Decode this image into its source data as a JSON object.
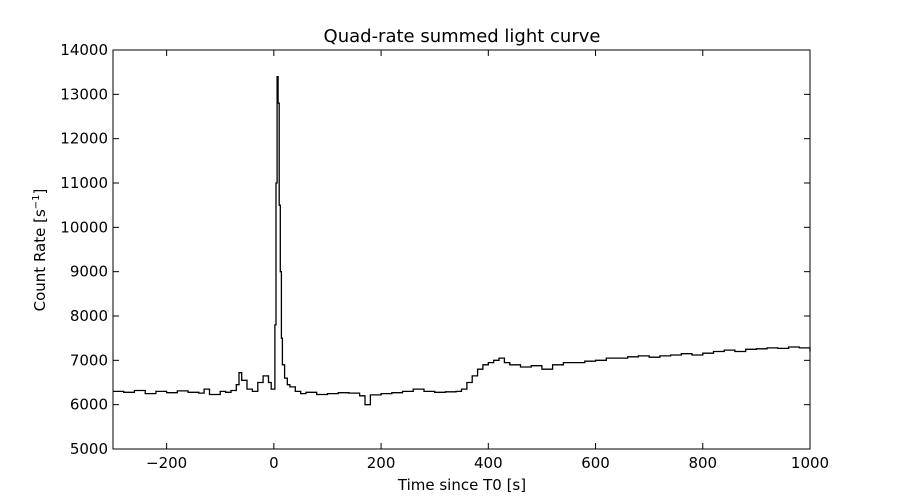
{
  "chart_data": {
    "type": "line",
    "title": "Quad-rate summed light curve",
    "xlabel": "Time since T0 [s]",
    "ylabel_main": "Count Rate [s",
    "ylabel_sup": "−1",
    "ylabel_end": "]",
    "xlim": [
      -300,
      1000
    ],
    "ylim": [
      5000,
      14000
    ],
    "x_ticks": [
      -200,
      0,
      200,
      400,
      600,
      800,
      1000
    ],
    "x_tick_labels": [
      "−200",
      "0",
      "200",
      "400",
      "600",
      "800",
      "1000"
    ],
    "y_ticks": [
      5000,
      6000,
      7000,
      8000,
      9000,
      10000,
      11000,
      12000,
      13000,
      14000
    ],
    "y_tick_labels": [
      "5000",
      "6000",
      "7000",
      "8000",
      "9000",
      "10000",
      "11000",
      "12000",
      "13000",
      "14000"
    ],
    "grid": false,
    "line_color": "#000000",
    "series": [
      {
        "x": [
          -300,
          -280,
          -260,
          -240,
          -220,
          -200,
          -180,
          -160,
          -140,
          -130,
          -120,
          -100,
          -90,
          -80,
          -70,
          -65,
          -60,
          -50,
          -40,
          -30,
          -20,
          -10,
          -5,
          0,
          2,
          4,
          6,
          8,
          10,
          12,
          14,
          16,
          20,
          25,
          30,
          40,
          50,
          60,
          80,
          100,
          120,
          140,
          160,
          170,
          180,
          200,
          220,
          240,
          260,
          280,
          300,
          320,
          340,
          350,
          360,
          370,
          380,
          390,
          400,
          410,
          420,
          430,
          440,
          460,
          480,
          500,
          520,
          540,
          560,
          580,
          600,
          620,
          640,
          660,
          680,
          700,
          720,
          740,
          760,
          780,
          800,
          820,
          840,
          860,
          880,
          900,
          920,
          940,
          960,
          980,
          1000
        ],
        "y": [
          6300,
          6280,
          6320,
          6250,
          6300,
          6270,
          6310,
          6280,
          6260,
          6350,
          6230,
          6300,
          6280,
          6320,
          6450,
          6720,
          6550,
          6350,
          6300,
          6500,
          6650,
          6500,
          6350,
          6350,
          7800,
          11000,
          13400,
          12800,
          10500,
          9000,
          7500,
          6900,
          6600,
          6450,
          6400,
          6300,
          6250,
          6280,
          6230,
          6250,
          6270,
          6260,
          6200,
          6000,
          6220,
          6250,
          6270,
          6300,
          6350,
          6300,
          6280,
          6290,
          6300,
          6350,
          6500,
          6650,
          6800,
          6900,
          6950,
          7000,
          7050,
          6950,
          6900,
          6850,
          6880,
          6800,
          6900,
          6950,
          6950,
          6980,
          7000,
          7050,
          7050,
          7080,
          7100,
          7070,
          7100,
          7120,
          7150,
          7120,
          7160,
          7200,
          7230,
          7200,
          7250,
          7260,
          7280,
          7270,
          7300,
          7280,
          7200
        ]
      }
    ]
  }
}
